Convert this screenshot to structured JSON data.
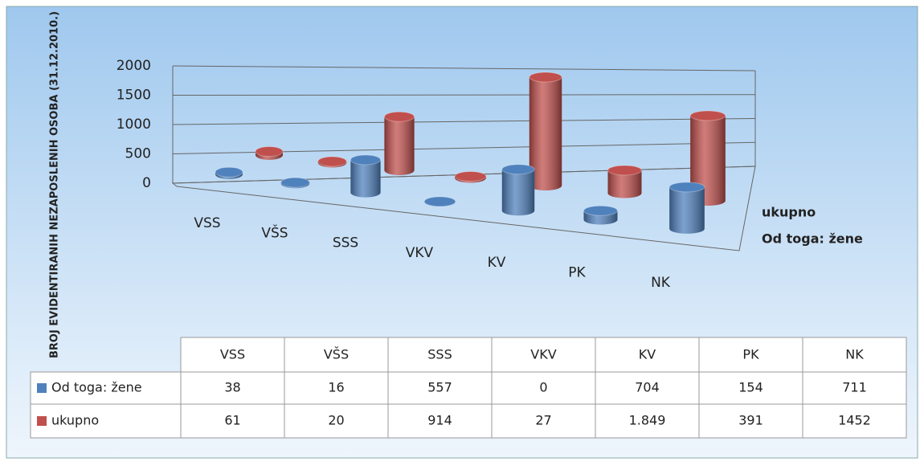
{
  "chart_data": {
    "type": "bar",
    "y_label": "BROJ EVIDENTIRANIH NEZAPOSLENIH OSOBA (31.12.2010.)",
    "categories": [
      "VSS",
      "VŠS",
      "SSS",
      "VKV",
      "KV",
      "PK",
      "NK"
    ],
    "series": [
      {
        "name": "Od toga: žene",
        "color": "#4f81bd",
        "values": [
          38,
          16,
          557,
          0,
          704,
          154,
          711
        ]
      },
      {
        "name": "ukupno",
        "color": "#c0504d",
        "values": [
          61,
          20,
          914,
          27,
          1849,
          391,
          1452
        ],
        "value_labels": [
          "61",
          "20",
          "914",
          "27",
          "1.849",
          "391",
          "1452"
        ]
      }
    ],
    "ylim": [
      0,
      2000
    ],
    "yticks": [
      0,
      500,
      1000,
      1500,
      2000
    ],
    "grid": true
  }
}
